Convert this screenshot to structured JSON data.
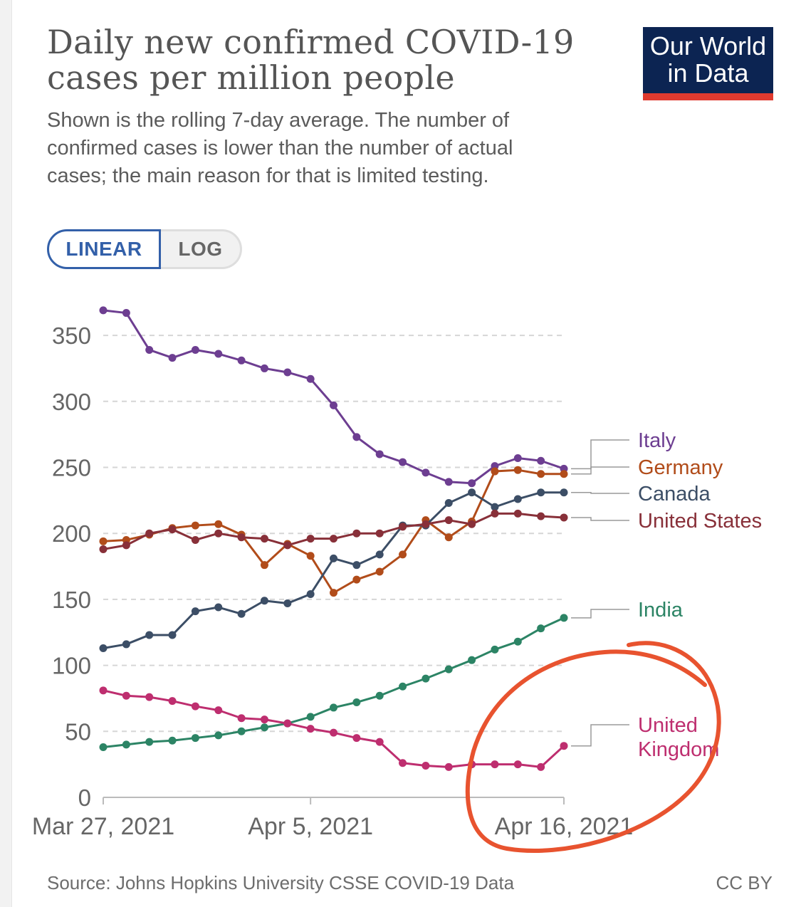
{
  "header": {
    "title": "Daily new confirmed COVID-19 cases per million people",
    "subtitle": "Shown is the rolling 7-day average. The number of confirmed cases is lower than the number of actual cases; the main reason for that is limited testing.",
    "logo_line1": "Our World",
    "logo_line2": "in Data",
    "logo_color": "#0c2452",
    "logo_accent": "#e03a2f"
  },
  "controls": {
    "linear_label": "LINEAR",
    "log_label": "LOG",
    "selected": "LINEAR",
    "accent": "#3360a9"
  },
  "footer": {
    "source": "Source: Johns Hopkins University CSSE COVID-19 Data",
    "license": "CC BY"
  },
  "annotation": {
    "shape": "hand-drawn ellipse",
    "color": "#e8532f",
    "around": "United Kingdom"
  },
  "chart_data": {
    "type": "line",
    "title": "Daily new confirmed COVID-19 cases per million people",
    "xlabel": "",
    "ylabel": "",
    "x": [
      "2021-03-27",
      "2021-03-28",
      "2021-03-29",
      "2021-03-30",
      "2021-03-31",
      "2021-04-01",
      "2021-04-02",
      "2021-04-03",
      "2021-04-04",
      "2021-04-05",
      "2021-04-06",
      "2021-04-07",
      "2021-04-08",
      "2021-04-09",
      "2021-04-10",
      "2021-04-11",
      "2021-04-12",
      "2021-04-13",
      "2021-04-14",
      "2021-04-15",
      "2021-04-16"
    ],
    "x_tick_labels": [
      "Mar 27, 2021",
      "Apr 5, 2021",
      "Apr 16, 2021"
    ],
    "x_tick_dates": [
      "2021-03-27",
      "2021-04-05",
      "2021-04-16"
    ],
    "y_ticks": [
      0,
      50,
      100,
      150,
      200,
      250,
      300,
      350
    ],
    "ylim": [
      0,
      370
    ],
    "grid": "horizontal dashed",
    "legend": "inline labels at right end of lines",
    "series": [
      {
        "name": "Italy",
        "color": "#6d3e91",
        "values": [
          369,
          367,
          339,
          333,
          339,
          336,
          331,
          325,
          322,
          317,
          297,
          273,
          260,
          254,
          246,
          239,
          238,
          251,
          257,
          255,
          249
        ]
      },
      {
        "name": "Germany",
        "color": "#b14c1a",
        "values": [
          194,
          195,
          199,
          204,
          206,
          207,
          199,
          176,
          192,
          183,
          155,
          165,
          171,
          184,
          210,
          197,
          209,
          247,
          248,
          245,
          245
        ]
      },
      {
        "name": "Canada",
        "color": "#3c4e66",
        "values": [
          113,
          116,
          123,
          123,
          141,
          144,
          139,
          149,
          147,
          154,
          181,
          176,
          184,
          206,
          206,
          223,
          231,
          220,
          226,
          231,
          231
        ]
      },
      {
        "name": "United States",
        "color": "#883039",
        "values": [
          188,
          191,
          200,
          203,
          195,
          200,
          197,
          196,
          191,
          196,
          196,
          200,
          200,
          205,
          207,
          210,
          207,
          215,
          215,
          213,
          212
        ]
      },
      {
        "name": "India",
        "color": "#2c8465",
        "values": [
          38,
          40,
          42,
          43,
          45,
          47,
          50,
          53,
          56,
          61,
          68,
          72,
          77,
          84,
          90,
          97,
          104,
          112,
          118,
          128,
          136
        ]
      },
      {
        "name": "United Kingdom",
        "color": "#be2e6f",
        "label_lines": [
          "United",
          "Kingdom"
        ],
        "values": [
          81,
          77,
          76,
          73,
          69,
          66,
          60,
          59,
          56,
          52,
          49,
          45,
          42,
          26,
          24,
          23,
          25,
          25,
          25,
          23,
          39
        ]
      }
    ]
  }
}
